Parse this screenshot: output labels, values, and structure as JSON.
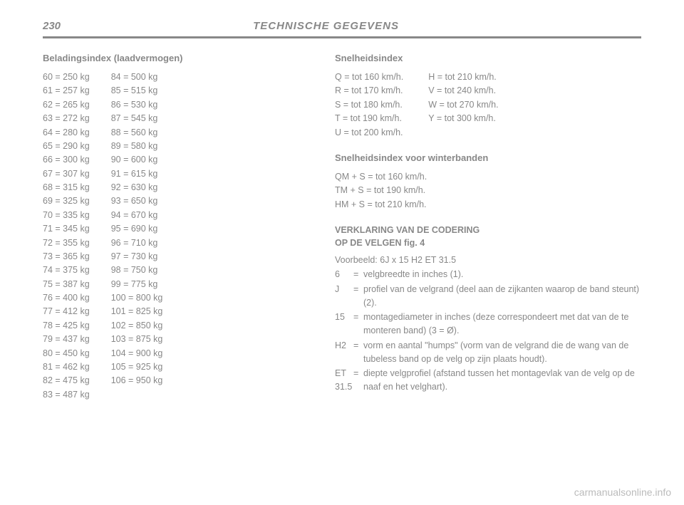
{
  "page_number": "230",
  "header_title": "TECHNISCHE GEGEVENS",
  "load_index": {
    "title": "Beladingsindex (laadvermogen)",
    "col1": [
      "60 = 250 kg",
      "61 = 257 kg",
      "62 = 265 kg",
      "63 = 272 kg",
      "64 = 280 kg",
      "65 = 290 kg",
      "66 = 300 kg",
      "67 = 307 kg",
      "68 = 315 kg",
      "69 = 325 kg",
      "70 = 335 kg",
      "71 = 345 kg",
      "72 = 355 kg",
      "73 = 365 kg",
      "74 = 375 kg",
      "75 = 387 kg",
      "76 = 400 kg",
      "77 = 412 kg",
      "78 = 425 kg",
      "79 = 437 kg",
      "80 = 450 kg",
      "81 = 462 kg",
      "82 = 475 kg",
      "83 = 487 kg"
    ],
    "col2": [
      "84 = 500 kg",
      "85 = 515 kg",
      "86 = 530 kg",
      "87 = 545 kg",
      "88 = 560 kg",
      "89 = 580 kg",
      "90 = 600 kg",
      "91 = 615 kg",
      "92 = 630 kg",
      "93 = 650 kg",
      "94 = 670 kg",
      "95 = 690 kg",
      "96 = 710 kg",
      "97 = 730 kg",
      "98 = 750 kg",
      "99 = 775 kg",
      "100 = 800 kg",
      "101 = 825 kg",
      "102 = 850 kg",
      "103 = 875 kg",
      "104 = 900 kg",
      "105 = 925 kg",
      "106 = 950 kg"
    ]
  },
  "speed_index": {
    "title": "Snelheidsindex",
    "col1": [
      "Q  = tot 160 km/h.",
      "R  = tot 170 km/h.",
      "S  = tot 180 km/h.",
      "T  = tot 190 km/h.",
      "U  = tot 200 km/h."
    ],
    "col2": [
      "H  = tot 210 km/h.",
      "V  = tot 240 km/h.",
      "W = tot 270 km/h.",
      "Y  = tot 300 km/h."
    ]
  },
  "winter": {
    "title": "Snelheidsindex voor\nwinterbanden",
    "lines": [
      "QM + S = tot 160 km/h.",
      "TM + S = tot 190 km/h.",
      "HM + S = tot 210 km/h."
    ]
  },
  "rim": {
    "title": "VERKLARING VAN DE CODERING\nOP DE VELGEN fig. 4",
    "example": "Voorbeeld: 6J x 15 H2 ET 31.5",
    "defs": [
      {
        "k": "6",
        "v": "velgbreedte in inches (1)."
      },
      {
        "k": "J",
        "v": "profiel van de velgrand (deel aan de zijkanten waarop de band steunt) (2)."
      },
      {
        "k": "15",
        "v": "montagediameter in inches (deze correspondeert met dat van de te monteren band) (3 = Ø)."
      },
      {
        "k": "H2",
        "v": "vorm en aantal \"humps\" (vorm van de velgrand die de wang van de tubeless band op de velg op zijn plaats houdt)."
      },
      {
        "k": "ET 31.5",
        "v": "diepte velgprofiel (afstand tussen het montagevlak van de velg op de naaf en het velghart)."
      }
    ]
  },
  "watermark": "carmanualsonline.info"
}
